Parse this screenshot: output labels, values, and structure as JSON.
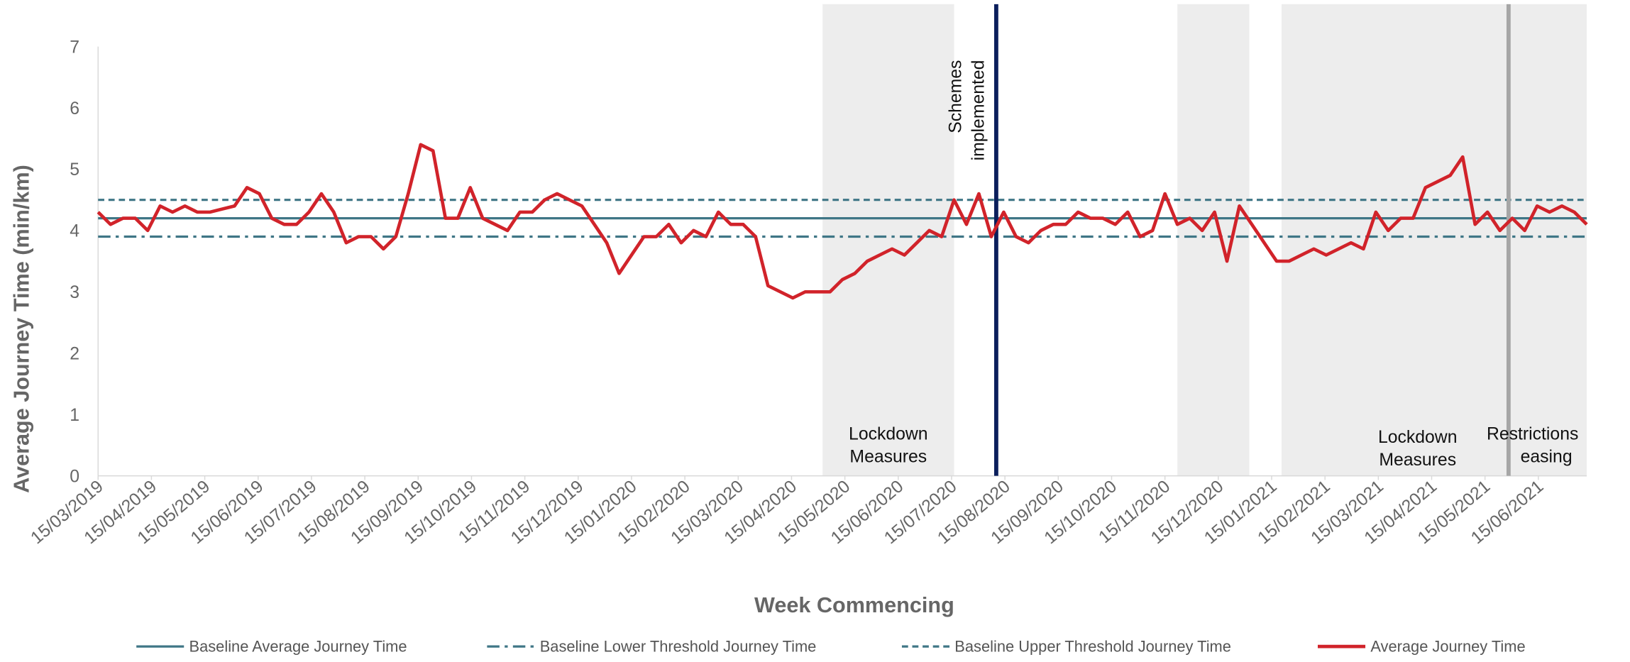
{
  "chart_data": {
    "type": "line",
    "ylabel": "Average Journey Time (min/km)",
    "xlabel": "Week Commencing",
    "ylim": [
      0,
      7
    ],
    "yticks": [
      0,
      1,
      2,
      3,
      4,
      5,
      6,
      7
    ],
    "xlim": [
      0,
      120
    ],
    "xticks": [
      {
        "value": 0,
        "label": "15/03/2019"
      },
      {
        "value": 4.3,
        "label": "15/04/2019"
      },
      {
        "value": 8.6,
        "label": "15/05/2019"
      },
      {
        "value": 12.9,
        "label": "15/06/2019"
      },
      {
        "value": 17.2,
        "label": "15/07/2019"
      },
      {
        "value": 21.5,
        "label": "15/08/2019"
      },
      {
        "value": 25.8,
        "label": "15/09/2019"
      },
      {
        "value": 30.1,
        "label": "15/10/2019"
      },
      {
        "value": 34.4,
        "label": "15/11/2019"
      },
      {
        "value": 38.7,
        "label": "15/12/2019"
      },
      {
        "value": 43,
        "label": "15/01/2020"
      },
      {
        "value": 47.3,
        "label": "15/02/2020"
      },
      {
        "value": 51.6,
        "label": "15/03/2020"
      },
      {
        "value": 55.9,
        "label": "15/04/2020"
      },
      {
        "value": 60.2,
        "label": "15/05/2020"
      },
      {
        "value": 64.5,
        "label": "15/06/2020"
      },
      {
        "value": 68.8,
        "label": "15/07/2020"
      },
      {
        "value": 73.1,
        "label": "15/08/2020"
      },
      {
        "value": 77.4,
        "label": "15/09/2020"
      },
      {
        "value": 81.7,
        "label": "15/10/2020"
      },
      {
        "value": 86,
        "label": "15/11/2020"
      },
      {
        "value": 90.3,
        "label": "15/12/2020"
      },
      {
        "value": 94.6,
        "label": "15/01/2021"
      },
      {
        "value": 98.9,
        "label": "15/02/2021"
      },
      {
        "value": 103.2,
        "label": "15/03/2021"
      },
      {
        "value": 107.5,
        "label": "15/04/2021"
      },
      {
        "value": 111.8,
        "label": "15/05/2021"
      },
      {
        "value": 116.1,
        "label": "15/06/2021"
      }
    ],
    "reference_lines": [
      {
        "name": "Baseline Average Journey Time",
        "value": 4.2,
        "color": "#3f7686",
        "style": "solid"
      },
      {
        "name": "Baseline Lower Threshold Journey Time",
        "value": 3.9,
        "color": "#3f7686",
        "style": "dashdot"
      },
      {
        "name": "Baseline Upper Threshold Journey Time",
        "value": 4.5,
        "color": "#3f7686",
        "style": "dashed"
      }
    ],
    "series": [
      {
        "name": "Average Journey Time",
        "color": "#d1232a",
        "values": [
          4.3,
          4.1,
          4.2,
          4.2,
          4.0,
          4.4,
          4.3,
          4.4,
          4.3,
          4.3,
          4.35,
          4.4,
          4.7,
          4.6,
          4.2,
          4.1,
          4.1,
          4.3,
          4.6,
          4.3,
          3.8,
          3.9,
          3.9,
          3.7,
          3.9,
          4.6,
          5.4,
          5.3,
          4.2,
          4.2,
          4.7,
          4.2,
          4.1,
          4.0,
          4.3,
          4.3,
          4.5,
          4.6,
          4.5,
          4.4,
          4.1,
          3.8,
          3.3,
          3.6,
          3.9,
          3.9,
          4.1,
          3.8,
          4.0,
          3.9,
          4.3,
          4.1,
          4.1,
          3.9,
          3.1,
          3.0,
          2.9,
          3.0,
          3.0,
          3.0,
          3.2,
          3.3,
          3.5,
          3.6,
          3.7,
          3.6,
          3.8,
          4.0,
          3.9,
          4.5,
          4.1,
          4.6,
          3.9,
          4.3,
          3.9,
          3.8,
          4.0,
          4.1,
          4.1,
          4.3,
          4.2,
          4.2,
          4.1,
          4.3,
          3.9,
          4.0,
          4.6,
          4.1,
          4.2,
          4.0,
          4.3,
          3.5,
          4.4,
          4.1,
          3.8,
          3.5,
          3.5,
          3.6,
          3.7,
          3.6,
          3.7,
          3.8,
          3.7,
          4.3,
          4.0,
          4.2,
          4.2,
          4.7,
          4.8,
          4.9,
          5.2,
          4.1,
          4.3,
          4.0,
          4.2,
          4.0,
          4.4,
          4.3,
          4.4,
          4.3,
          4.1
        ]
      }
    ],
    "shaded_periods": [
      {
        "start": 58.4,
        "end": 69,
        "label": [
          "Lockdown",
          "Measures"
        ]
      },
      {
        "start": 87,
        "end": 92.8
      },
      {
        "start": 95.4,
        "end": 114,
        "label": [
          "Lockdown",
          "Measures"
        ]
      },
      {
        "start": 114,
        "end": 120,
        "label": [
          "Restrictions",
          "easing"
        ]
      }
    ],
    "events": [
      {
        "x": 72.4,
        "label": [
          "Schemes",
          "implemented"
        ],
        "color": "#0b1f5c"
      },
      {
        "x": 113.7,
        "color": "#a6a6a6"
      }
    ]
  }
}
